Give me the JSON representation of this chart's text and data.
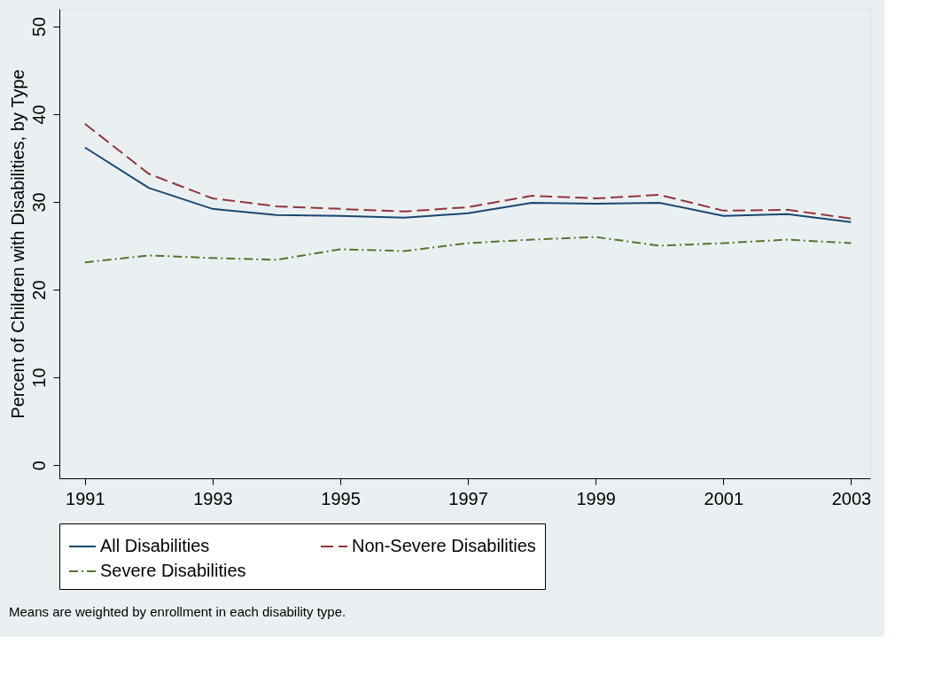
{
  "chart_data": {
    "type": "line",
    "ylabel": "Percent of Children with Disabilities, by Type",
    "x": [
      1991,
      1992,
      1993,
      1994,
      1995,
      1996,
      1997,
      1998,
      1999,
      2000,
      2001,
      2002,
      2003
    ],
    "series": [
      {
        "name": "All Disabilities",
        "color": "#1a476f",
        "line_style": "solid",
        "values": [
          36.2,
          31.6,
          29.2,
          28.5,
          28.4,
          28.2,
          28.7,
          29.9,
          29.8,
          29.9,
          28.4,
          28.6,
          27.7
        ]
      },
      {
        "name": "Non-Severe Disabilities",
        "color": "#90353b",
        "line_style": "dashed",
        "values": [
          38.9,
          33.2,
          30.4,
          29.5,
          29.2,
          28.9,
          29.4,
          30.7,
          30.4,
          30.8,
          29.0,
          29.1,
          28.1
        ]
      },
      {
        "name": "Severe Disabilities",
        "color": "#55752f",
        "line_style": "dashdot",
        "values": [
          23.1,
          23.9,
          23.6,
          23.4,
          24.6,
          24.4,
          25.3,
          25.7,
          26.0,
          25.0,
          25.3,
          25.7,
          25.3
        ]
      }
    ],
    "xlim": [
      1990.6,
      2003.3
    ],
    "xticks": [
      1991,
      1993,
      1995,
      1997,
      1999,
      2001,
      2003
    ],
    "ylim": [
      -1.5,
      52
    ],
    "yticks": [
      0,
      10,
      20,
      30,
      40,
      50
    ],
    "grid": "y",
    "legend": "bottom",
    "annotations": [
      "Means are weighted by enrollment in each disability type."
    ]
  }
}
